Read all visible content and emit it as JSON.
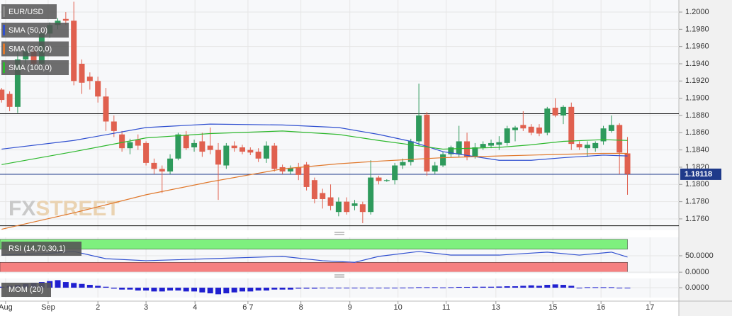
{
  "chart_data": [
    {
      "type": "candlestick",
      "xlim": [
        -0.2,
        84.4
      ],
      "xticks": [
        {
          "value": 0.5,
          "label": "Aug"
        },
        {
          "value": 5.8,
          "label": "Sep"
        },
        {
          "value": 12,
          "label": "2"
        },
        {
          "value": 18,
          "label": "3"
        },
        {
          "value": 24.1,
          "label": "4"
        },
        {
          "value": 30.7,
          "label": "6 7"
        },
        {
          "value": 37.3,
          "label": "8"
        },
        {
          "value": 43.4,
          "label": "9"
        },
        {
          "value": 49.4,
          "label": "10"
        },
        {
          "value": 55.4,
          "label": "11"
        },
        {
          "value": 61.6,
          "label": "13"
        },
        {
          "value": 68.7,
          "label": "15"
        },
        {
          "value": 74.7,
          "label": "16"
        },
        {
          "value": 80.8,
          "label": "17"
        }
      ],
      "ylim": [
        1.17468,
        1.2014
      ],
      "yticks": [
        {
          "value": 1.176,
          "label": "1.1760"
        },
        {
          "value": 1.178,
          "label": "1.1780"
        },
        {
          "value": 1.18,
          "label": "1.1800"
        },
        {
          "value": 1.182,
          "label": "1.1820"
        },
        {
          "value": 1.184,
          "label": "1.1840"
        },
        {
          "value": 1.186,
          "label": "1.1860"
        },
        {
          "value": 1.188,
          "label": "1.1880"
        },
        {
          "value": 1.19,
          "label": "1.1900"
        },
        {
          "value": 1.192,
          "label": "1.1920"
        },
        {
          "value": 1.194,
          "label": "1.1940"
        },
        {
          "value": 1.196,
          "label": "1.1960"
        },
        {
          "value": 1.198,
          "label": "1.1980"
        },
        {
          "value": 1.2,
          "label": "1.2000"
        }
      ],
      "grid": true,
      "watermark": [
        "FX",
        "STREET"
      ],
      "candles": {
        "name": "EUR/USD",
        "up_color": "#2e9a5c",
        "down_color": "#e0604f",
        "open": [
          1.191,
          1.1905,
          1.189,
          1.1945,
          1.1955,
          1.194,
          1.1975,
          1.1985,
          1.1992,
          1.199,
          1.194,
          1.1925,
          1.192,
          1.1902,
          1.1873,
          1.1858,
          1.1842,
          1.1852,
          1.1848,
          1.1825,
          1.1818,
          1.1815,
          1.183,
          1.1857,
          1.1843,
          1.185,
          1.1845,
          1.184,
          1.1822,
          1.1845,
          1.1843,
          1.184,
          1.1838,
          1.183,
          1.1845,
          1.182,
          1.1815,
          1.182,
          1.1823,
          1.1805,
          1.179,
          1.1785,
          1.1768,
          1.178,
          1.1775,
          1.1777,
          1.1768,
          1.1808,
          1.1804,
          1.1805,
          1.1822,
          1.1826,
          1.185,
          1.1881,
          1.1815,
          1.1822,
          1.1835,
          1.1835,
          1.185,
          1.1832,
          1.1843,
          1.1845,
          1.1846,
          1.1848,
          1.1863,
          1.1869,
          1.1867,
          1.1866,
          1.186,
          1.1889,
          1.188,
          1.189,
          1.1847,
          1.1842,
          1.1842,
          1.185,
          1.1862,
          1.1869,
          1.1836
        ],
        "high": [
          1.1912,
          1.1908,
          1.1955,
          1.1958,
          1.196,
          1.1978,
          1.1988,
          1.1993,
          1.2,
          1.2012,
          1.1945,
          1.193,
          1.1925,
          1.1912,
          1.188,
          1.1862,
          1.1853,
          1.1858,
          1.185,
          1.183,
          1.1822,
          1.1835,
          1.186,
          1.1862,
          1.1852,
          1.186,
          1.1866,
          1.1848,
          1.1848,
          1.185,
          1.1846,
          1.1843,
          1.1842,
          1.185,
          1.1848,
          1.1823,
          1.1822,
          1.1825,
          1.1826,
          1.1808,
          1.1795,
          1.18,
          1.1785,
          1.1785,
          1.1782,
          1.178,
          1.1828,
          1.181,
          1.1806,
          1.1825,
          1.183,
          1.1853,
          1.1917,
          1.1884,
          1.1826,
          1.1838,
          1.1845,
          1.1868,
          1.186,
          1.1848,
          1.185,
          1.1852,
          1.1856,
          1.1868,
          1.1868,
          1.1885,
          1.187,
          1.187,
          1.189,
          1.19,
          1.1892,
          1.1895,
          1.185,
          1.185,
          1.185,
          1.1868,
          1.188,
          1.1871,
          1.1855
        ],
        "low": [
          1.1895,
          1.1885,
          1.1883,
          1.194,
          1.1938,
          1.1936,
          1.197,
          1.198,
          1.1985,
          1.1915,
          1.1905,
          1.191,
          1.1895,
          1.1862,
          1.1855,
          1.1838,
          1.1835,
          1.184,
          1.1822,
          1.1812,
          1.179,
          1.1812,
          1.1828,
          1.184,
          1.1838,
          1.1832,
          1.1835,
          1.1782,
          1.1818,
          1.1838,
          1.1835,
          1.1834,
          1.1826,
          1.1825,
          1.1815,
          1.1812,
          1.1812,
          1.1805,
          1.1793,
          1.1778,
          1.1772,
          1.177,
          1.1763,
          1.1765,
          1.177,
          1.1755,
          1.1765,
          1.18,
          1.1803,
          1.18,
          1.1818,
          1.1822,
          1.1845,
          1.181,
          1.1812,
          1.182,
          1.1832,
          1.1832,
          1.1828,
          1.183,
          1.184,
          1.1842,
          1.184,
          1.1845,
          1.185,
          1.1862,
          1.1857,
          1.1856,
          1.1857,
          1.1878,
          1.187,
          1.184,
          1.184,
          1.1832,
          1.1838,
          1.1846,
          1.186,
          1.1812,
          1.1788
        ],
        "close": [
          1.1898,
          1.189,
          1.1945,
          1.1955,
          1.194,
          1.1975,
          1.1985,
          1.199,
          1.199,
          1.192,
          1.1918,
          1.192,
          1.1902,
          1.1873,
          1.1862,
          1.1842,
          1.1849,
          1.1845,
          1.1825,
          1.1818,
          1.1815,
          1.183,
          1.1858,
          1.1842,
          1.1848,
          1.1838,
          1.184,
          1.1823,
          1.1845,
          1.1842,
          1.1838,
          1.1837,
          1.183,
          1.1845,
          1.1818,
          1.1815,
          1.1819,
          1.1811,
          1.1797,
          1.1783,
          1.1783,
          1.1775,
          1.178,
          1.1768,
          1.1778,
          1.1768,
          1.1808,
          1.1804,
          1.1805,
          1.1822,
          1.1826,
          1.185,
          1.188,
          1.1815,
          1.1822,
          1.1835,
          1.1843,
          1.185,
          1.1832,
          1.1843,
          1.1847,
          1.1848,
          1.1849,
          1.1865,
          1.1866,
          1.1865,
          1.186,
          1.1859,
          1.1888,
          1.188,
          1.189,
          1.1847,
          1.1843,
          1.1846,
          1.1848,
          1.1865,
          1.1869,
          1.1837,
          1.1812
        ]
      },
      "series": [
        {
          "name": "SMA (50,0)",
          "color": "#2f4fd0",
          "x": [
            0,
            9,
            18,
            26,
            35,
            42,
            47,
            51,
            55,
            62,
            66,
            70,
            75,
            78
          ],
          "values": [
            1.1841,
            1.1851,
            1.1866,
            1.187,
            1.1869,
            1.1866,
            1.1858,
            1.185,
            1.1838,
            1.1828,
            1.1828,
            1.1831,
            1.1834,
            1.1833
          ]
        },
        {
          "name": "SMA (200,0)",
          "color": "#e0782c",
          "x": [
            0,
            9,
            18,
            26,
            35,
            42,
            47,
            51,
            55,
            62,
            66,
            70,
            75,
            78
          ],
          "values": [
            1.1748,
            1.1767,
            1.1788,
            1.1803,
            1.1818,
            1.1824,
            1.1827,
            1.1829,
            1.1831,
            1.1833,
            1.1834,
            1.1835,
            1.1836,
            1.1836
          ]
        },
        {
          "name": "SMA (100,0)",
          "color": "#2db82d",
          "x": [
            0,
            9,
            18,
            26,
            35,
            42,
            47,
            51,
            55,
            62,
            66,
            70,
            75,
            78
          ],
          "values": [
            1.1823,
            1.1838,
            1.1854,
            1.1859,
            1.1862,
            1.1858,
            1.1851,
            1.1846,
            1.1841,
            1.1843,
            1.1846,
            1.185,
            1.1852,
            1.1851
          ]
        }
      ],
      "hlines": [
        {
          "value": 1.1882,
          "color": "#111111"
        },
        {
          "value": 1.1752,
          "color": "#111111"
        }
      ],
      "last_price": 1.18118,
      "last_price_color": "#1f3a8a"
    },
    {
      "type": "line",
      "ylim": [
        -4,
        106
      ],
      "yticks": [
        {
          "value": 50,
          "label": "50.0000"
        },
        {
          "value": 0,
          "label": "0.0000"
        }
      ],
      "bands": [
        {
          "range": [
            70,
            100
          ],
          "color": "#7ef07e"
        },
        {
          "range": [
            0,
            30
          ],
          "color": "#f58080"
        }
      ],
      "series": [
        {
          "name": "RSI (14,70,30,1)",
          "color": "#2f4fd0",
          "x": [
            0,
            5,
            9,
            13,
            18,
            26,
            35,
            40,
            44,
            47,
            52,
            56,
            62,
            68,
            72,
            76,
            78
          ],
          "values": [
            52,
            56,
            63,
            41,
            35,
            41,
            48,
            35,
            30,
            48,
            63,
            52,
            52,
            61,
            52,
            61,
            46
          ]
        }
      ]
    },
    {
      "type": "bar",
      "ylim": [
        -0.0105,
        0.0098
      ],
      "yticks": [
        {
          "value": 0,
          "label": "0.0000"
        }
      ],
      "series": [
        {
          "name": "MOM (20)",
          "color": "#2020d0",
          "values": [
            0.001,
            0.002,
            0.003,
            0.004,
            0.005,
            0.006,
            0.007,
            0.008,
            0.006,
            0.005,
            0.004,
            0.003,
            0.002,
            0.001,
            -0.001,
            -0.002,
            -0.002,
            -0.003,
            -0.003,
            -0.004,
            -0.004,
            -0.003,
            -0.003,
            -0.004,
            -0.004,
            -0.005,
            -0.006,
            -0.007,
            -0.006,
            -0.005,
            -0.004,
            -0.004,
            -0.003,
            -0.003,
            -0.002,
            -0.002,
            -0.002,
            -0.001,
            -0.001,
            -0.001,
            -0.0005,
            -0.0005,
            -0.0005,
            -0.0003,
            -0.0003,
            -0.0002,
            -0.0001,
            0,
            0,
            0,
            0.0001,
            0.0002,
            0.0005,
            0.0005,
            0.0005,
            0.0003,
            0.0005,
            0.0008,
            0.0008,
            0.001,
            0.001,
            0.001,
            0.0012,
            0.0015,
            0.0015,
            0.002,
            0.0025,
            0.002,
            0.003,
            0.0035,
            0.003,
            0.002,
            -0.0005,
            0.0005,
            0.0005,
            0.0005,
            0.0005,
            -0.0002,
            -0.0002
          ]
        }
      ]
    }
  ]
}
